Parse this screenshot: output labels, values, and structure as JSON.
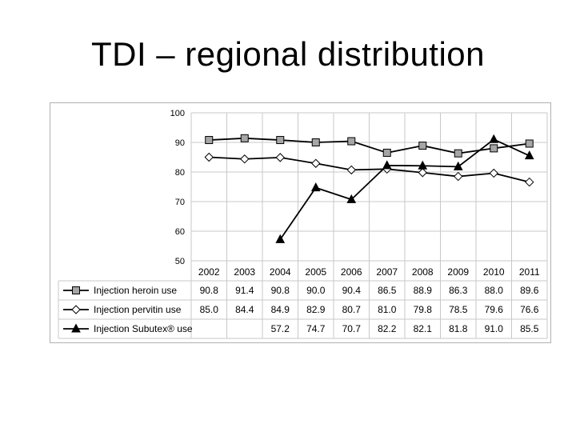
{
  "slide": {
    "title": "TDI – regional distribution"
  },
  "chart_data": {
    "type": "line",
    "title": "",
    "xlabel": "",
    "ylabel": "",
    "categories": [
      "2002",
      "2003",
      "2004",
      "2005",
      "2006",
      "2007",
      "2008",
      "2009",
      "2010",
      "2011"
    ],
    "ylim": [
      50,
      100
    ],
    "yticks": [
      "50",
      "60",
      "70",
      "80",
      "90",
      "100"
    ],
    "grid": true,
    "legend": "table-below",
    "series": [
      {
        "name": "Injection heroin use",
        "marker": "square",
        "values": [
          90.8,
          91.4,
          90.8,
          90.0,
          90.4,
          86.5,
          88.9,
          86.3,
          88.0,
          89.6
        ],
        "labels": [
          "90.8",
          "91.4",
          "90.8",
          "90.0",
          "90.4",
          "86.5",
          "88.9",
          "86.3",
          "88.0",
          "89.6"
        ]
      },
      {
        "name": "Injection pervitin use",
        "marker": "diamond",
        "values": [
          85.0,
          84.4,
          84.9,
          82.9,
          80.7,
          81.0,
          79.8,
          78.5,
          79.6,
          76.6
        ],
        "labels": [
          "85.0",
          "84.4",
          "84.9",
          "82.9",
          "80.7",
          "81.0",
          "79.8",
          "78.5",
          "79.6",
          "76.6"
        ]
      },
      {
        "name": "Injection Subutex® use",
        "marker": "triangle",
        "values": [
          null,
          null,
          57.2,
          74.7,
          70.7,
          82.2,
          82.1,
          81.8,
          91.0,
          85.5
        ],
        "labels": [
          "",
          "",
          "57.2",
          "74.7",
          "70.7",
          "82.2",
          "82.1",
          "81.8",
          "91.0",
          "85.5"
        ]
      }
    ],
    "colors": {
      "line": "#000000",
      "square_fill": "#a6a6a6",
      "diamond_fill": "#ffffff",
      "grid": "#c8c8c8"
    }
  }
}
